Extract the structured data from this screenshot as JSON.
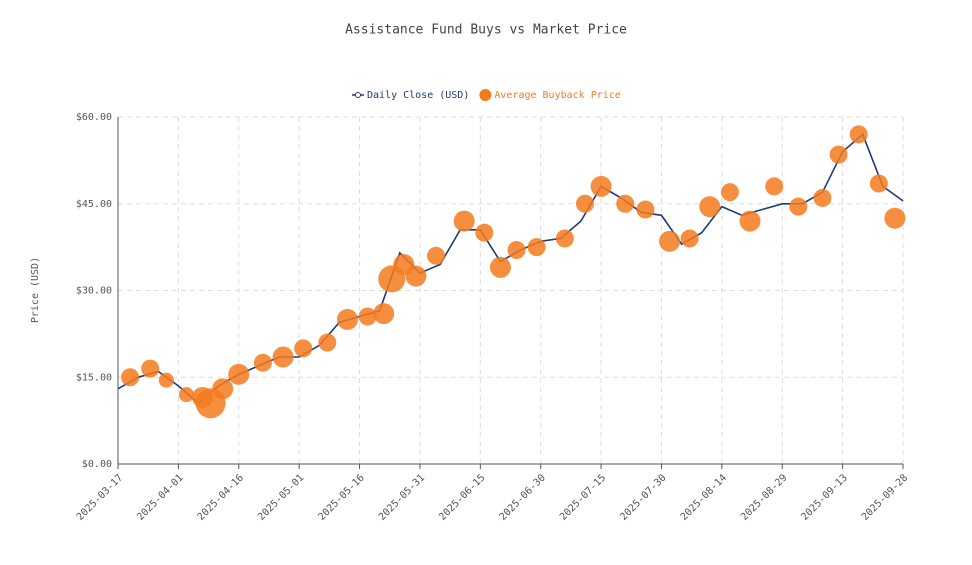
{
  "chart_data": {
    "type": "line_bubble",
    "title": "Assistance Fund Buys vs Market Price",
    "y_label": "Price (USD)",
    "xlim": [
      "2025-03-17",
      "2025-09-28"
    ],
    "xticks": [
      "2025-03-17",
      "2025-04-01",
      "2025-04-16",
      "2025-05-01",
      "2025-05-16",
      "2025-05-31",
      "2025-06-15",
      "2025-06-30",
      "2025-07-15",
      "2025-07-30",
      "2025-08-14",
      "2025-08-29",
      "2025-09-13",
      "2025-09-28"
    ],
    "ylim": [
      0,
      60
    ],
    "yticks": [
      {
        "value": 0,
        "label": "$0.00"
      },
      {
        "value": 15,
        "label": "$15.00"
      },
      {
        "value": 30,
        "label": "$30.00"
      },
      {
        "value": 45,
        "label": "$45.00"
      },
      {
        "value": 60,
        "label": "$60.00"
      }
    ],
    "grid": true,
    "series": [
      {
        "name": "Daily Close (USD)",
        "kind": "line",
        "color": "#1f3a7a",
        "x": [
          "2025-03-17",
          "2025-03-22",
          "2025-03-27",
          "2025-04-01",
          "2025-04-06",
          "2025-04-11",
          "2025-04-16",
          "2025-04-21",
          "2025-04-26",
          "2025-05-01",
          "2025-05-06",
          "2025-05-11",
          "2025-05-16",
          "2025-05-21",
          "2025-05-26",
          "2025-05-31",
          "2025-06-05",
          "2025-06-10",
          "2025-06-15",
          "2025-06-20",
          "2025-06-25",
          "2025-06-30",
          "2025-07-05",
          "2025-07-10",
          "2025-07-15",
          "2025-07-20",
          "2025-07-25",
          "2025-07-30",
          "2025-08-04",
          "2025-08-09",
          "2025-08-14",
          "2025-08-19",
          "2025-08-24",
          "2025-08-29",
          "2025-09-03",
          "2025-09-08",
          "2025-09-13",
          "2025-09-18",
          "2025-09-23",
          "2025-09-28"
        ],
        "values": [
          13,
          15,
          16,
          13.5,
          10.5,
          13.5,
          15.5,
          17,
          18.5,
          18.5,
          20.5,
          24.5,
          25.5,
          26.5,
          36.5,
          33,
          34.5,
          40.5,
          40.5,
          35,
          37,
          38.5,
          39,
          42,
          48,
          46,
          43.5,
          43,
          38,
          40,
          44.5,
          43,
          44,
          45,
          45,
          47,
          54,
          57,
          48,
          45.5
        ]
      },
      {
        "name": "Average Buyback Price",
        "kind": "bubble",
        "color": "#f47a1f",
        "x": [
          "2025-03-20",
          "2025-03-25",
          "2025-03-29",
          "2025-04-03",
          "2025-04-07",
          "2025-04-09",
          "2025-04-12",
          "2025-04-16",
          "2025-04-22",
          "2025-04-27",
          "2025-05-02",
          "2025-05-08",
          "2025-05-13",
          "2025-05-18",
          "2025-05-22",
          "2025-05-24",
          "2025-05-27",
          "2025-05-30",
          "2025-06-04",
          "2025-06-11",
          "2025-06-16",
          "2025-06-20",
          "2025-06-24",
          "2025-06-29",
          "2025-07-06",
          "2025-07-11",
          "2025-07-15",
          "2025-07-21",
          "2025-07-26",
          "2025-08-01",
          "2025-08-06",
          "2025-08-11",
          "2025-08-16",
          "2025-08-21",
          "2025-08-27",
          "2025-09-02",
          "2025-09-08",
          "2025-09-12",
          "2025-09-17",
          "2025-09-22",
          "2025-09-26"
        ],
        "values": [
          15,
          16.5,
          14.5,
          12,
          11.5,
          10.5,
          13,
          15.5,
          17.5,
          18.5,
          20,
          21,
          25,
          25.5,
          26,
          32,
          34.5,
          32.5,
          36,
          42,
          40,
          34,
          37,
          37.5,
          39,
          45,
          48,
          45,
          44,
          38.5,
          39,
          44.5,
          47,
          42,
          48,
          44.5,
          46,
          53.5,
          57,
          48.5,
          42.5
        ],
        "sizes": [
          3,
          3,
          2.5,
          2.5,
          3.5,
          5,
          3.5,
          3.5,
          3,
          3.5,
          3,
          3,
          3.5,
          3,
          3.5,
          4.5,
          3.5,
          3.5,
          3,
          3.5,
          3,
          3.5,
          3,
          3,
          3,
          3,
          3.5,
          3,
          3,
          3.5,
          3,
          3.5,
          3,
          3.5,
          3,
          3,
          3,
          3,
          3,
          3,
          3.5
        ]
      }
    ]
  }
}
